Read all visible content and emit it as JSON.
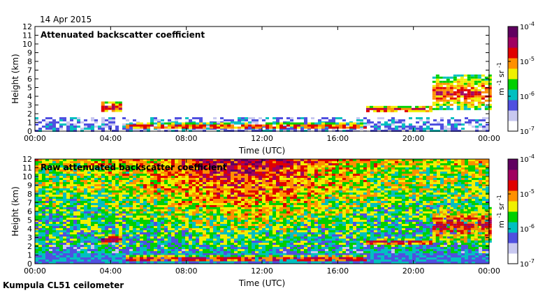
{
  "date_label": "14 Apr 2015",
  "footer": "Kumpula CL51 ceilometer",
  "colors": {
    "cmap": [
      "#ffffff",
      "#c8c8f0",
      "#5050e0",
      "#00c0c0",
      "#00d000",
      "#f0f000",
      "#ff9000",
      "#e00000",
      "#a00060",
      "#600060"
    ]
  },
  "chart_data": [
    {
      "type": "heatmap",
      "title": "Attenuated backscatter coefficient",
      "xlabel": "Time (UTC)",
      "ylabel": "Height (km)",
      "x_ticks": [
        "00:00",
        "04:00",
        "08:00",
        "12:00",
        "16:00",
        "20:00",
        "00:00"
      ],
      "y_ticks": [
        "0",
        "1",
        "2",
        "3",
        "4",
        "5",
        "6",
        "7",
        "8",
        "9",
        "10",
        "11",
        "12"
      ],
      "xlim_hours": [
        0,
        24
      ],
      "ylim_km": [
        0,
        12
      ],
      "colorbar": {
        "ticks": [
          "10",
          "10",
          "10",
          "10"
        ],
        "exponents": [
          "-7",
          "-6",
          "-5",
          "-4"
        ],
        "unit_m": "m",
        "unit_m_exp": "-1",
        "unit_sr": "sr",
        "unit_sr_exp": "-1",
        "scale": "log",
        "range": [
          1e-07,
          0.0001
        ]
      },
      "features": [
        {
          "name": "boundary-layer-haze",
          "start_h": 0,
          "end_h": 24,
          "bottom_km": 0,
          "top_km": 1.6,
          "level": 0.3
        },
        {
          "name": "morning-cloud",
          "start_h": 3.5,
          "end_h": 4.6,
          "bottom_km": 2.2,
          "top_km": 3.4,
          "level": 0.85
        },
        {
          "name": "surface-layer",
          "start_h": 4.8,
          "end_h": 17.5,
          "bottom_km": 0.3,
          "top_km": 1.0,
          "level": 0.8
        },
        {
          "name": "evening-cloud-base",
          "start_h": 17.5,
          "end_h": 21,
          "bottom_km": 2.3,
          "top_km": 2.9,
          "level": 0.85
        },
        {
          "name": "night-cloud",
          "start_h": 21,
          "end_h": 24,
          "bottom_km": 2.5,
          "top_km": 6.5,
          "level": 0.75
        }
      ]
    },
    {
      "type": "heatmap",
      "title": "Raw attenuated backscatter coefficient",
      "xlabel": "Time (UTC)",
      "ylabel": "Height (km)",
      "x_ticks": [
        "00:00",
        "04:00",
        "08:00",
        "12:00",
        "16:00",
        "20:00",
        "00:00"
      ],
      "y_ticks": [
        "0",
        "1",
        "2",
        "3",
        "4",
        "5",
        "6",
        "7",
        "8",
        "9",
        "10",
        "11",
        "12"
      ],
      "xlim_hours": [
        0,
        24
      ],
      "ylim_km": [
        0,
        12
      ],
      "colorbar": {
        "ticks": [
          "10",
          "10",
          "10",
          "10"
        ],
        "exponents": [
          "-7",
          "-6",
          "-5",
          "-4"
        ],
        "unit_m": "m",
        "unit_m_exp": "-1",
        "unit_sr": "sr",
        "unit_sr_exp": "-1",
        "scale": "log",
        "range": [
          1e-07,
          0.0001
        ]
      },
      "features": [
        {
          "name": "background-noise",
          "start_h": 0,
          "end_h": 24,
          "bottom_km": 0,
          "top_km": 12,
          "level": 0.5
        },
        {
          "name": "morning-cloud",
          "start_h": 3.5,
          "end_h": 4.6,
          "bottom_km": 2.2,
          "top_km": 3.4,
          "level": 0.85
        },
        {
          "name": "surface-layer",
          "start_h": 4.8,
          "end_h": 17.5,
          "bottom_km": 0.3,
          "top_km": 1.0,
          "level": 0.85
        },
        {
          "name": "evening-cloud-base",
          "start_h": 17.5,
          "end_h": 21,
          "bottom_km": 2.3,
          "top_km": 2.9,
          "level": 0.85
        },
        {
          "name": "night-cloud",
          "start_h": 21,
          "end_h": 24,
          "bottom_km": 2.5,
          "top_km": 6.5,
          "level": 0.8
        }
      ]
    }
  ]
}
